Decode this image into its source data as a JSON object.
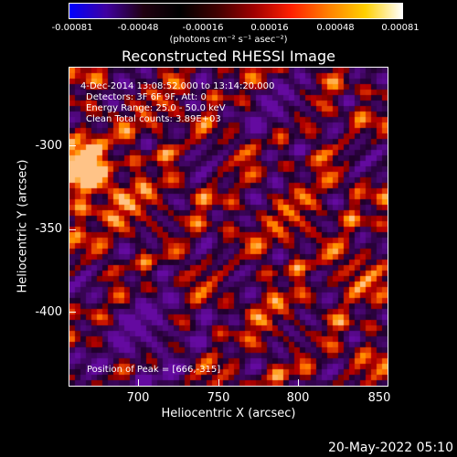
{
  "colorbar": {
    "ticks": [
      "-0.00081",
      "-0.00048",
      "-0.00016",
      "0.00016",
      "0.00048",
      "0.00081"
    ],
    "unit_label": "(photons cm⁻² s⁻¹ asec⁻²)",
    "colors": [
      "#0000ff",
      "#4000a0",
      "#200010",
      "#000000",
      "#400000",
      "#a00000",
      "#ff2000",
      "#ff8000",
      "#ffd000",
      "#ffffff"
    ]
  },
  "title": "Reconstructed RHESSI Image",
  "info": {
    "line1": "4-Dec-2014 13:08:52.000 to 13:14:20.000",
    "line2": "Detectors: 3F 6F 9F, Att: 0",
    "line3": "Energy Range: 25.0 - 50.0 keV",
    "line4": "Clean     Total counts: 3.89E+03",
    "peak": "Position of Peak = [666,-315]"
  },
  "axes": {
    "xlabel": "Heliocentric X (arcsec)",
    "ylabel": "Heliocentric Y (arcsec)",
    "xticks": [
      "700",
      "750",
      "800",
      "850"
    ],
    "yticks": [
      "-300",
      "-350",
      "-400"
    ]
  },
  "datestamp": "20-May-2022 05:10"
}
